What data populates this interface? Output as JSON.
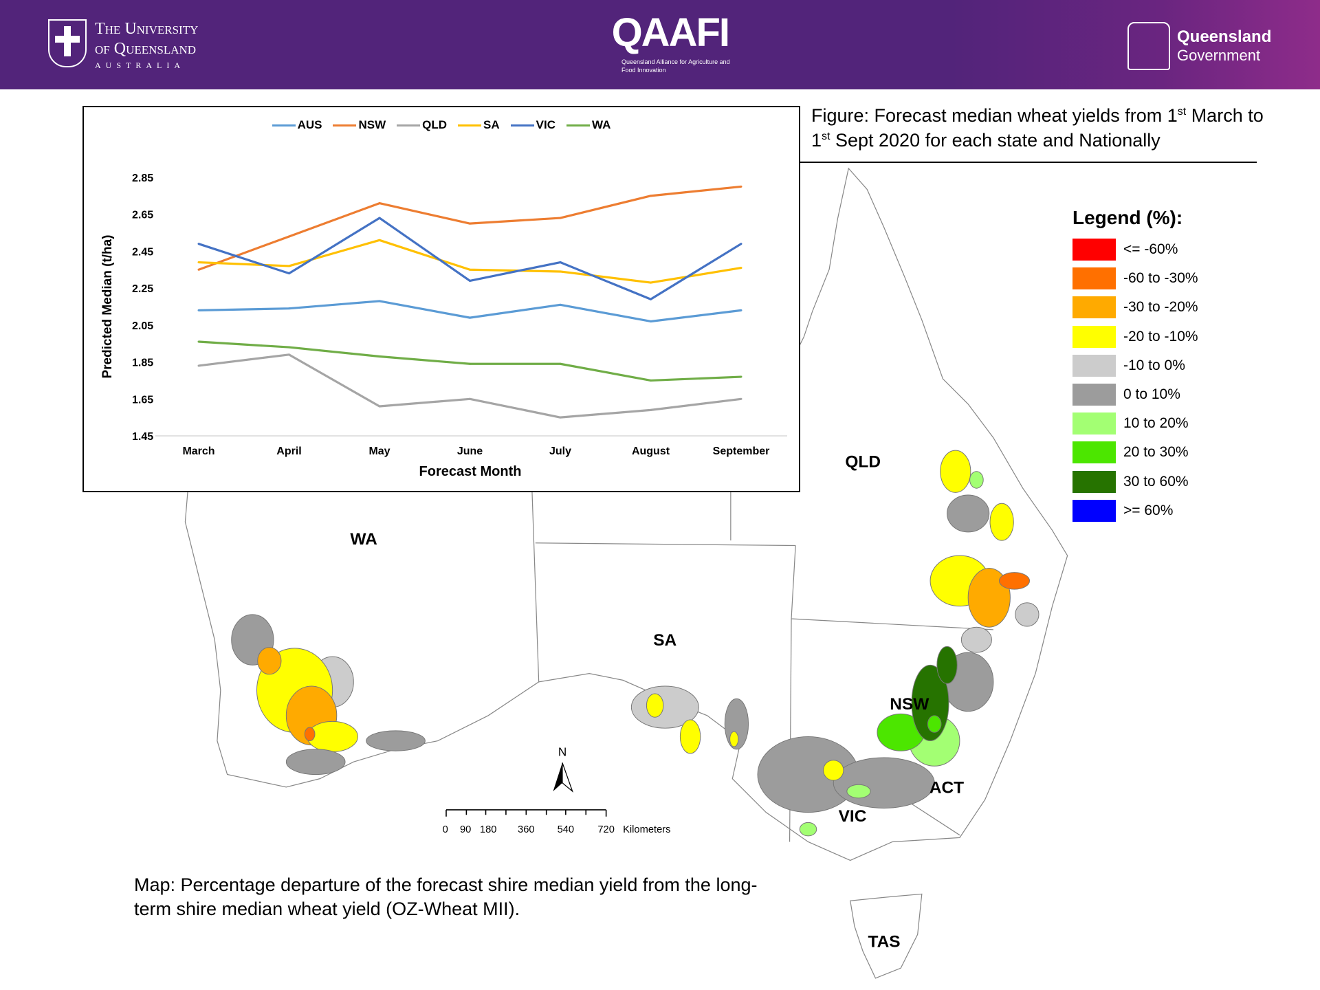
{
  "header": {
    "uq_logo": {
      "line1": "The University",
      "line2": "of Queensland",
      "line3": "AUSTRALIA"
    },
    "qaafi_logo": {
      "title": "QAAFI",
      "subtitle": "Queensland Alliance for Agriculture and Food Innovation"
    },
    "qld_gov_logo": {
      "line1": "Queensland",
      "line2": "Government"
    }
  },
  "figure_caption": {
    "part1": "Figure: Forecast median wheat yields from 1",
    "sup1": "st",
    "part2": " March to ",
    "part3": "1",
    "sup2": "st",
    "part4": " Sept 2020 for each state and Nationally"
  },
  "chart_data": {
    "type": "line",
    "categories": [
      "March",
      "April",
      "May",
      "June",
      "July",
      "August",
      "September"
    ],
    "xlabel": "Forecast Month",
    "ylabel": "Predicted Median (t/ha)",
    "ylim": [
      1.45,
      2.85
    ],
    "yticks": [
      "2.85",
      "2.65",
      "2.45",
      "2.25",
      "2.05",
      "1.85",
      "1.65",
      "1.45"
    ],
    "legend_position": "top",
    "grid": false,
    "series": [
      {
        "name": "AUS",
        "color": "#5b9bd5",
        "values": [
          2.13,
          2.14,
          2.18,
          2.09,
          2.16,
          2.07,
          2.13
        ]
      },
      {
        "name": "NSW",
        "color": "#ed7d31",
        "values": [
          2.35,
          2.53,
          2.71,
          2.6,
          2.63,
          2.75,
          2.8
        ]
      },
      {
        "name": "QLD",
        "color": "#a5a5a5",
        "values": [
          1.83,
          1.89,
          1.61,
          1.65,
          1.55,
          1.59,
          1.65
        ]
      },
      {
        "name": "SA",
        "color": "#ffc000",
        "values": [
          2.39,
          2.37,
          2.51,
          2.35,
          2.34,
          2.28,
          2.36
        ]
      },
      {
        "name": "VIC",
        "color": "#4472c4",
        "values": [
          2.49,
          2.33,
          2.63,
          2.29,
          2.39,
          2.19,
          2.49
        ]
      },
      {
        "name": "WA",
        "color": "#70ad47",
        "values": [
          1.96,
          1.93,
          1.88,
          1.84,
          1.84,
          1.75,
          1.77
        ]
      }
    ]
  },
  "map": {
    "state_labels": {
      "qld": "QLD",
      "wa": "WA",
      "sa": "SA",
      "nsw": "NSW",
      "act": "ACT",
      "vic": "VIC",
      "tas": "TAS"
    },
    "north": "N",
    "scale": {
      "ticks": [
        "0",
        "90",
        "180",
        "360",
        "540",
        "720"
      ],
      "unit": "Kilometers"
    }
  },
  "legend": {
    "title": "Legend (%):",
    "items": [
      {
        "label": "<= -60%",
        "color": "#ff0000"
      },
      {
        "label": "-60 to -30%",
        "color": "#ff7000"
      },
      {
        "label": "-30 to -20%",
        "color": "#ffaa00"
      },
      {
        "label": "-20 to -10%",
        "color": "#ffff00"
      },
      {
        "label": "-10 to 0%",
        "color": "#cccccc"
      },
      {
        "label": "0 to 10%",
        "color": "#9c9c9c"
      },
      {
        "label": "10 to 20%",
        "color": "#a3ff73"
      },
      {
        "label": "20 to 30%",
        "color": "#4ce600"
      },
      {
        "label": "30 to 60%",
        "color": "#267300"
      },
      {
        "label": ">= 60%",
        "color": "#0000ff"
      }
    ]
  },
  "map_caption": {
    "line1": "Map: Percentage departure of the forecast shire median yield from the long-",
    "line2": "term shire median wheat yield (OZ-Wheat MII)."
  }
}
